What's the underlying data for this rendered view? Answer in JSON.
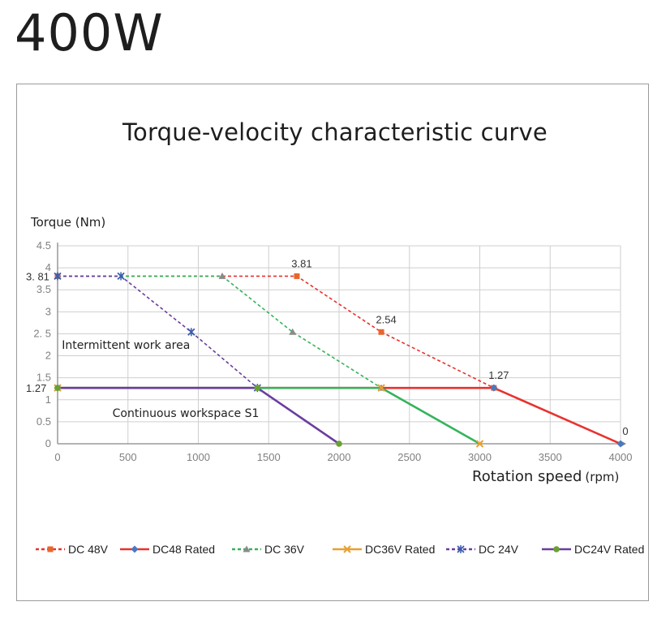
{
  "page": {
    "title": "400W"
  },
  "chart_data": {
    "type": "line",
    "title": "Torque-velocity characteristic curve",
    "xlabel_main": "Rotation speed",
    "xlabel_unit": "(rpm)",
    "ylabel": "Torque (Nm)",
    "xlim": [
      0,
      4000
    ],
    "ylim": [
      0,
      4.5
    ],
    "grid": true,
    "legend_position": "bottom",
    "x_ticks": [
      {
        "value": 0,
        "label": "0"
      },
      {
        "value": 500,
        "label": "500"
      },
      {
        "value": 1000,
        "label": "1000"
      },
      {
        "value": 1500,
        "label": "1500"
      },
      {
        "value": 2000,
        "label": "2000"
      },
      {
        "value": 2500,
        "label": "2500"
      },
      {
        "value": 3000,
        "label": "3000"
      },
      {
        "value": 3500,
        "label": "3500"
      },
      {
        "value": 4000,
        "label": "4000"
      }
    ],
    "y_ticks": [
      {
        "value": 0,
        "label": "0"
      },
      {
        "value": 0.5,
        "label": "0.5"
      },
      {
        "value": 1,
        "label": "1"
      },
      {
        "value": 1.5,
        "label": "1.5"
      },
      {
        "value": 2,
        "label": "2"
      },
      {
        "value": 2.5,
        "label": "2. 5"
      },
      {
        "value": 3,
        "label": "3"
      },
      {
        "value": 3.5,
        "label": "3.5"
      },
      {
        "value": 4,
        "label": "4"
      },
      {
        "value": 4.5,
        "label": "4.5"
      }
    ],
    "y_marker_labels": [
      {
        "value": 3.81,
        "label": "3. 81"
      },
      {
        "value": 1.27,
        "label": "1.27"
      }
    ],
    "series": [
      {
        "name": "DC  48V",
        "color": "#e8322e",
        "marker_color": "#e8662e",
        "dash": true,
        "marker": "square",
        "x": [
          0,
          1700,
          2300,
          3100
        ],
        "y": [
          3.81,
          3.81,
          2.54,
          1.27
        ]
      },
      {
        "name": "DC48  Rated",
        "color": "#e8322e",
        "marker_color": "#4a78c0",
        "dash": false,
        "marker": "diamond",
        "x": [
          0,
          3100,
          4000
        ],
        "y": [
          1.27,
          1.27,
          0
        ]
      },
      {
        "name": "DC  36V",
        "color": "#35b35a",
        "marker_color": "#8a8a8a",
        "dash": true,
        "marker": "triangle",
        "x": [
          0,
          1170,
          1670,
          2300
        ],
        "y": [
          3.81,
          3.81,
          2.54,
          1.27
        ]
      },
      {
        "name": "DC36V  Rated",
        "color": "#35b35a",
        "marker_color": "#e8a030",
        "dash": false,
        "marker": "x",
        "x": [
          0,
          2300,
          3000
        ],
        "y": [
          1.27,
          1.27,
          0
        ]
      },
      {
        "name": "DC  24V",
        "color": "#6a3e9e",
        "marker_color": "#3a5bb0",
        "dash": true,
        "marker": "star",
        "x": [
          0,
          450,
          950,
          1420
        ],
        "y": [
          3.81,
          3.81,
          2.54,
          1.27
        ]
      },
      {
        "name": "DC24V  Rated",
        "color": "#6a3e9e",
        "marker_color": "#6aa030",
        "dash": false,
        "marker": "circle",
        "x": [
          0,
          1420,
          2000
        ],
        "y": [
          1.27,
          1.27,
          0
        ]
      }
    ],
    "point_labels": [
      {
        "x": 1700,
        "y": 3.81,
        "label": "3.81"
      },
      {
        "x": 2300,
        "y": 2.54,
        "label": "2.54"
      },
      {
        "x": 3100,
        "y": 1.27,
        "label": "1.27"
      },
      {
        "x": 4000,
        "y": 0,
        "label": "0"
      }
    ],
    "annotations": [
      {
        "text": "Intermittent work area",
        "x": 30,
        "y": 2.25
      },
      {
        "text": "Continuous workspace S1",
        "x": 390,
        "y": 0.7
      }
    ],
    "legend_line_colors": [
      "#e8322e",
      "#e8322e",
      "#35b35a",
      "#e8a030",
      "#6a3e9e",
      "#6a3e9e"
    ]
  }
}
